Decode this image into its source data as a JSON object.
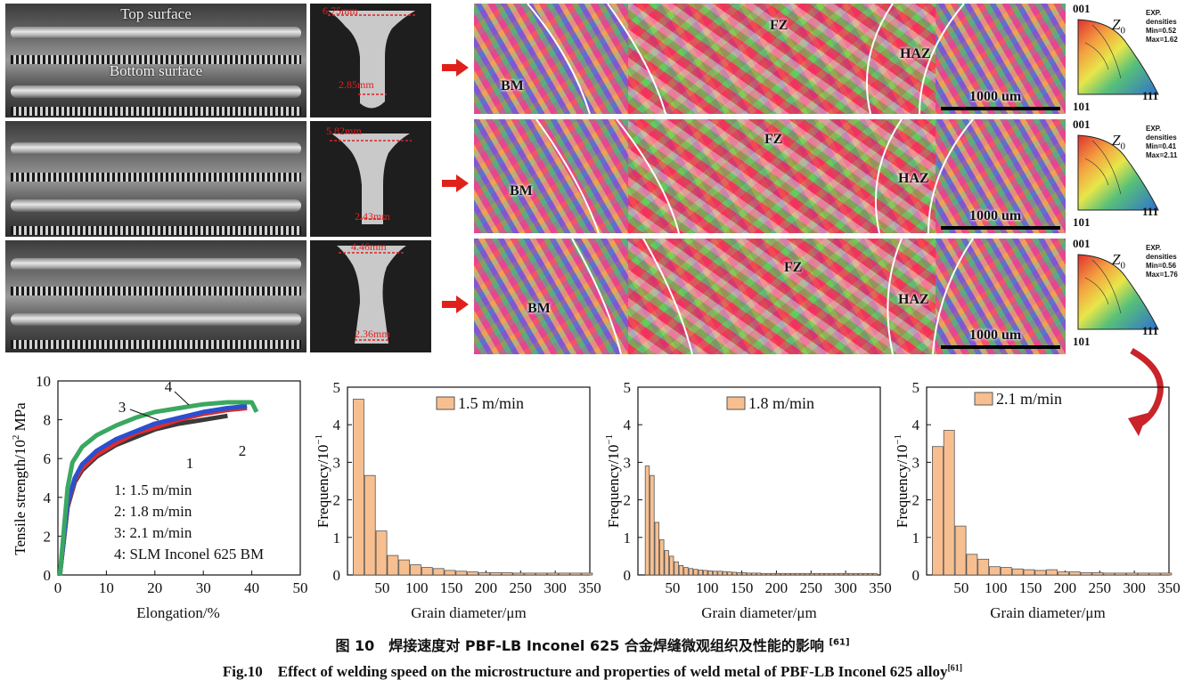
{
  "macro_photos": {
    "top_label": "Top surface",
    "bottom_label": "Bottom surface"
  },
  "cross_sections": [
    {
      "top_width": "6.75mm",
      "bottom_width": "2.85mm"
    },
    {
      "top_width": "5.82mm",
      "bottom_width": "2.43mm"
    },
    {
      "top_width": "4.46mm",
      "bottom_width": "2.36mm"
    }
  ],
  "ebsd_maps": [
    {
      "bm": "BM",
      "fz": "FZ",
      "haz": "HAZ",
      "scale": "1000 um"
    },
    {
      "bm": "BM",
      "fz": "FZ",
      "haz": "HAZ",
      "scale": "1000 um"
    },
    {
      "bm": "BM",
      "fz": "FZ",
      "haz": "HAZ",
      "scale": "1000 um"
    }
  ],
  "ipf": [
    {
      "p001": "001",
      "p101": "101",
      "p111": "111",
      "z0": "Z",
      "z0_sub": "0",
      "exp": "EXP.",
      "densities": "densities",
      "min": "Min=0.52",
      "max": "Max=1.62"
    },
    {
      "p001": "001",
      "p101": "101",
      "p111": "111",
      "z0": "Z",
      "z0_sub": "0",
      "exp": "EXP.",
      "densities": "densities",
      "min": "Min=0.41",
      "max": "Max=2.11"
    },
    {
      "p001": "001",
      "p101": "101",
      "p111": "111",
      "z0": "Z",
      "z0_sub": "0",
      "exp": "EXP.",
      "densities": "densities",
      "min": "Min=0.56",
      "max": "Max=1.76"
    }
  ],
  "colors": {
    "arrow": "#e0211b",
    "bar_fill": "#f7bf8f",
    "bar_stroke": "#555555",
    "curve1": "#3a3a3a",
    "curve2": "#e02a2a",
    "curve3": "#2a4fd0",
    "curve4": "#3aa860"
  },
  "chart_data": [
    {
      "type": "line",
      "xlabel": "Elongation/%",
      "ylabel_main": "Tensile strength/10",
      "ylabel_sup": "2",
      "ylabel_unit": " MPa",
      "xlim": [
        0,
        50
      ],
      "ylim": [
        0,
        10
      ],
      "xticks": [
        0,
        10,
        20,
        30,
        40,
        50
      ],
      "yticks": [
        0,
        2,
        4,
        6,
        8,
        10
      ],
      "curve_labels": [
        "1",
        "2",
        "3",
        "4"
      ],
      "legend": [
        "1: 1.5 m/min",
        "2: 1.8 m/min",
        "3: 2.1 m/min",
        "4: SLM Inconel 625 BM"
      ],
      "series": [
        {
          "name": "1",
          "x": [
            0.4,
            2,
            3.5,
            5,
            8,
            12,
            16,
            20,
            25,
            30,
            35
          ],
          "y": [
            0,
            3.5,
            4.8,
            5.4,
            6.1,
            6.7,
            7.1,
            7.5,
            7.8,
            8.0,
            8.2
          ]
        },
        {
          "name": "2",
          "x": [
            0.4,
            2,
            3.5,
            5,
            8,
            12,
            16,
            20,
            25,
            30,
            35,
            39
          ],
          "y": [
            0,
            3.6,
            4.9,
            5.5,
            6.2,
            6.8,
            7.3,
            7.6,
            8.0,
            8.3,
            8.5,
            8.6
          ]
        },
        {
          "name": "3",
          "x": [
            0.4,
            2,
            3.5,
            5,
            8,
            12,
            16,
            20,
            25,
            30,
            35,
            39
          ],
          "y": [
            0,
            3.7,
            5.0,
            5.7,
            6.4,
            7.0,
            7.4,
            7.8,
            8.1,
            8.4,
            8.6,
            8.7
          ]
        },
        {
          "name": "4",
          "x": [
            0.4,
            2,
            3,
            5,
            8,
            12,
            16,
            20,
            25,
            30,
            35,
            40,
            41
          ],
          "y": [
            0,
            4.5,
            5.8,
            6.6,
            7.2,
            7.7,
            8.1,
            8.4,
            8.6,
            8.8,
            8.9,
            8.9,
            8.4
          ]
        }
      ]
    },
    {
      "type": "bar",
      "legend": "1.5 m/min",
      "xlabel": "Grain diameter/μm",
      "ylabel_main": "Frequency/10",
      "ylabel_sup": "−1",
      "xlim": [
        0,
        350
      ],
      "ylim": [
        0,
        5
      ],
      "xticks": [
        50,
        100,
        150,
        200,
        250,
        300,
        350
      ],
      "yticks": [
        0,
        1,
        2,
        3,
        4,
        5
      ],
      "bin_width": 16.5,
      "x": [
        16.5,
        33,
        49.5,
        66,
        82.5,
        99,
        115.5,
        132,
        148.5,
        165,
        181.5,
        198,
        214.5,
        231,
        247.5,
        264,
        280.5,
        297,
        313.5,
        330,
        346.5
      ],
      "values": [
        4.68,
        2.65,
        1.17,
        0.52,
        0.4,
        0.27,
        0.2,
        0.17,
        0.12,
        0.1,
        0.08,
        0.06,
        0.06,
        0.06,
        0.05,
        0.05,
        0.05,
        0.05,
        0.05,
        0.05,
        0.05
      ]
    },
    {
      "type": "bar",
      "legend": "1.8 m/min",
      "xlabel": "Grain diameter/μm",
      "ylabel_main": "Frequency/10",
      "ylabel_sup": "−1",
      "xlim": [
        0,
        350
      ],
      "ylim": [
        0,
        5
      ],
      "xticks": [
        50,
        100,
        150,
        200,
        250,
        300,
        350
      ],
      "yticks": [
        0,
        1,
        2,
        3,
        4,
        5
      ],
      "bin_width": 7,
      "x": [
        14,
        21,
        28,
        35,
        42,
        49,
        56,
        63,
        70,
        77,
        84,
        91,
        98,
        105,
        112,
        119,
        126,
        133,
        140,
        147,
        154,
        161,
        168,
        175,
        182,
        189,
        196,
        203,
        210,
        217,
        224,
        231,
        238,
        245,
        252,
        259,
        266,
        273,
        280,
        287,
        294,
        301,
        308,
        315,
        322,
        329,
        336,
        343
      ],
      "values": [
        2.9,
        2.65,
        1.4,
        0.94,
        0.65,
        0.5,
        0.35,
        0.25,
        0.2,
        0.17,
        0.15,
        0.13,
        0.12,
        0.11,
        0.1,
        0.1,
        0.09,
        0.08,
        0.07,
        0.06,
        0.06,
        0.05,
        0.05,
        0.05,
        0.04,
        0.04,
        0.04,
        0.04,
        0.04,
        0.04,
        0.04,
        0.04,
        0.04,
        0.04,
        0.04,
        0.04,
        0.04,
        0.04,
        0.04,
        0.04,
        0.04,
        0.04,
        0.04,
        0.04,
        0.04,
        0.04,
        0.04,
        0.04
      ]
    },
    {
      "type": "bar",
      "legend": "2.1 m/min",
      "xlabel": "Grain diameter/μm",
      "ylabel_main": "Frequency/10",
      "ylabel_sup": "−1",
      "xlim": [
        0,
        350
      ],
      "ylim": [
        0,
        5
      ],
      "xticks": [
        50,
        100,
        150,
        200,
        250,
        300,
        350
      ],
      "yticks": [
        0,
        1,
        2,
        3,
        4,
        5
      ],
      "bin_width": 16.5,
      "x": [
        16.5,
        33,
        49.5,
        66,
        82.5,
        99,
        115.5,
        132,
        148.5,
        165,
        181.5,
        198,
        214.5,
        231,
        247.5,
        264,
        280.5,
        297,
        313.5,
        330,
        346.5
      ],
      "values": [
        3.42,
        3.85,
        1.3,
        0.55,
        0.42,
        0.22,
        0.2,
        0.16,
        0.14,
        0.12,
        0.14,
        0.08,
        0.08,
        0.06,
        0.06,
        0.05,
        0.05,
        0.05,
        0.05,
        0.05,
        0.05
      ]
    }
  ],
  "caption_cn": {
    "text": "图 10　焊接速度对 PBF-LB Inconel 625 合金焊缝微观组织及性能的影响 ",
    "ref": "[61]"
  },
  "caption_en": {
    "text": "Fig.10　Effect of welding speed on the microstructure and properties of weld metal of PBF-LB Inconel 625 alloy",
    "ref": "[61]"
  }
}
